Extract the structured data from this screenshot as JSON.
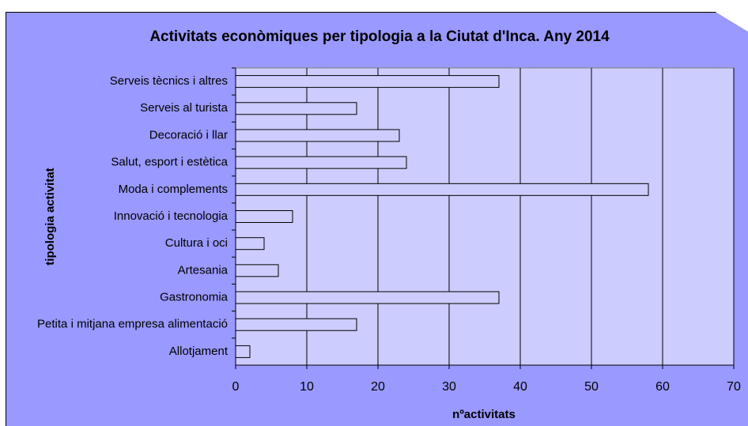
{
  "chart_data": {
    "type": "bar",
    "orientation": "horizontal",
    "title": "Activitats econòmiques per tipologia a la Ciutat d'Inca. Any 2014",
    "x_label": "nºactivitats",
    "y_label": "tipologia activitat",
    "categories": [
      "Serveis tècnics i altres",
      "Serveis al turista",
      "Decoració i llar",
      "Salut, esport i estètica",
      "Moda i complements",
      "Innovació i tecnologia",
      "Cultura i oci",
      "Artesania",
      "Gastronomia",
      "Petita i mitjana empresa alimentació",
      "Allotjament"
    ],
    "values": [
      37,
      17,
      23,
      24,
      58,
      8,
      4,
      6,
      37,
      17,
      2
    ],
    "color": "#ccccff",
    "xlim": [
      0,
      70
    ],
    "xticks": [
      0,
      10,
      20,
      30,
      40,
      50,
      60,
      70
    ],
    "grid": true
  }
}
